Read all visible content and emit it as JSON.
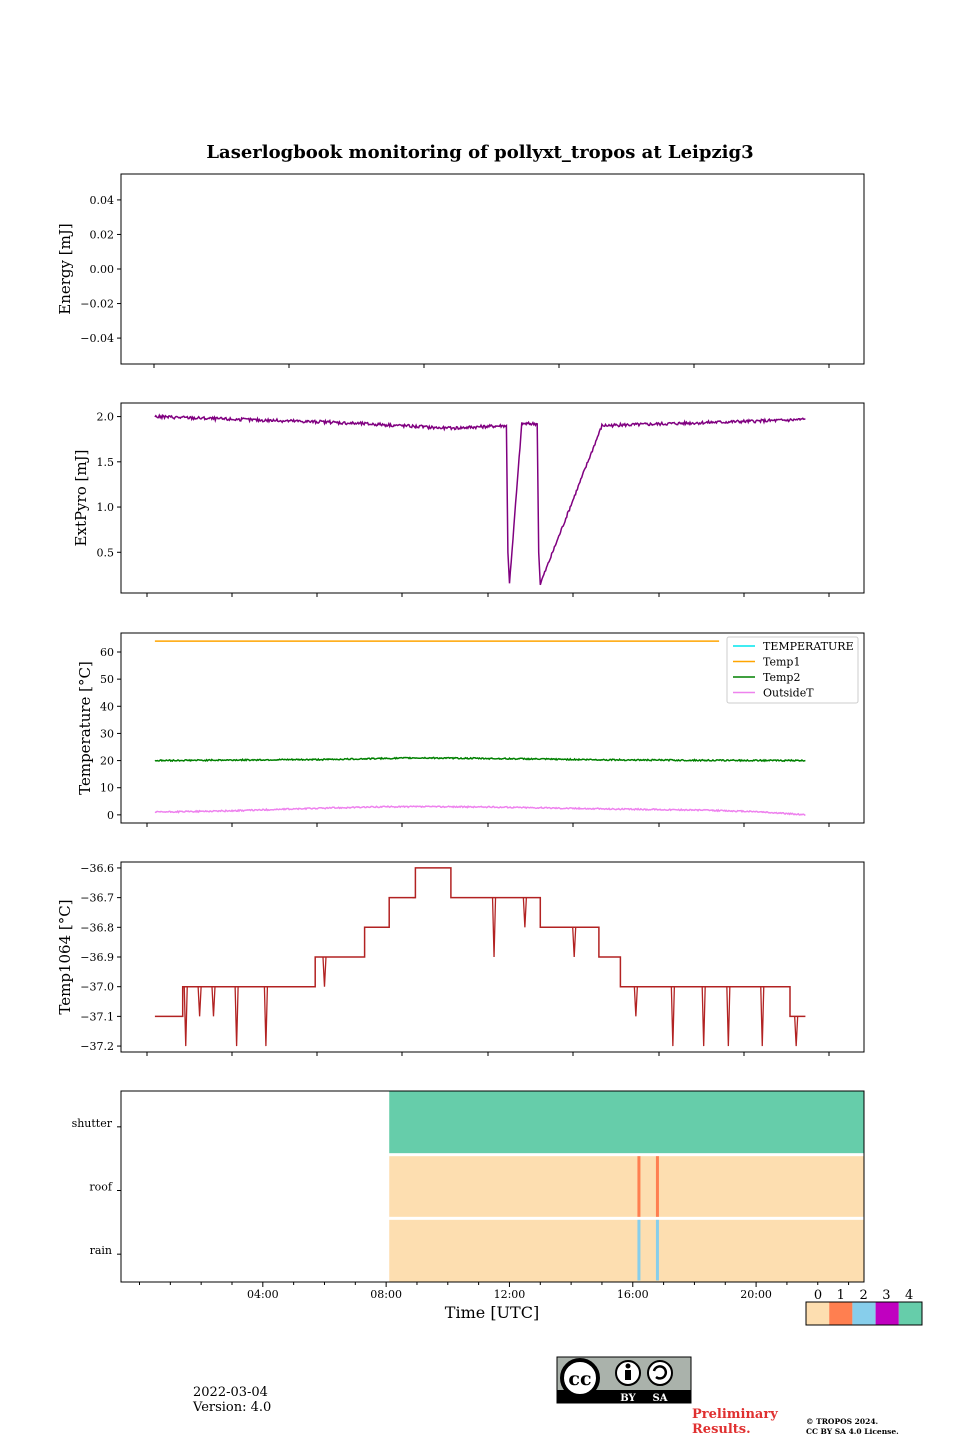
{
  "title": "Laserlogbook monitoring of pollyxt_tropos at Leipzig3",
  "date": "2022-03-04",
  "version": "Version: 4.0",
  "preliminary": [
    "Preliminary",
    "Results."
  ],
  "copyright": [
    "© TROPOS 2024.",
    "CC BY SA 4.0 License."
  ],
  "cc_logo": {
    "cc": "cc",
    "by": "BY",
    "sa": "SA"
  },
  "colors": {
    "energy": "#800080",
    "extpyro": "#800080",
    "temperature": "#00e5ee",
    "temp1": "#ffa500",
    "temp2": "#008000",
    "outside": "#ee82ee",
    "temp1064": "#b22222",
    "status": [
      "#fddeb0",
      "#ff7f50",
      "#87ceeb",
      "#c000c0",
      "#66cdaa"
    ],
    "preliminary": "#e03030"
  },
  "chart_data": [
    {
      "type": "line",
      "id": "energy",
      "ylabel": "Energy [mJ]",
      "ylim": [
        -0.055,
        0.055
      ],
      "yticks": [
        0.04,
        0.02,
        0.0,
        -0.02,
        -0.04
      ],
      "ytick_labels": [
        "0.04",
        "0.02",
        "0.00",
        "−0.02",
        "−0.04"
      ],
      "series": []
    },
    {
      "type": "line",
      "id": "extpyro",
      "ylabel": "ExtPyro [mJ]",
      "ylim": [
        0.05,
        2.15
      ],
      "yticks": [
        2.0,
        1.5,
        1.0,
        0.5
      ],
      "ytick_labels": [
        "2.0",
        "1.5",
        "1.0",
        "0.5"
      ],
      "series": [
        {
          "name": "ExtPyro",
          "x_hours": [
            0.5,
            3,
            6,
            8,
            10,
            11.9,
            11.95,
            12.0,
            12.4,
            12.9,
            12.95,
            13.0,
            15,
            18,
            21,
            21.6
          ],
          "y": [
            2.0,
            1.97,
            1.94,
            1.91,
            1.87,
            1.9,
            0.5,
            0.15,
            1.92,
            1.92,
            0.5,
            0.15,
            1.9,
            1.93,
            1.96,
            1.97
          ]
        }
      ]
    },
    {
      "type": "line",
      "id": "temperature",
      "ylabel": "Temperature [°C]",
      "ylim": [
        -3,
        67
      ],
      "yticks": [
        60,
        50,
        40,
        30,
        20,
        10,
        0
      ],
      "ytick_labels": [
        "60",
        "50",
        "40",
        "30",
        "20",
        "10",
        "0"
      ],
      "legend": [
        "TEMPERATURE",
        "Temp1",
        "Temp2",
        "OutsideT"
      ],
      "series": [
        {
          "name": "Temp1",
          "x_hours": [
            0.5,
            18.8
          ],
          "y": [
            64,
            64
          ]
        },
        {
          "name": "Temp2",
          "x_hours": [
            0.5,
            3,
            6,
            9,
            12,
            15,
            18,
            21.6
          ],
          "y": [
            20,
            20.2,
            20.4,
            21,
            20.7,
            20.3,
            20.1,
            20
          ]
        },
        {
          "name": "OutsideT",
          "x_hours": [
            0.5,
            3,
            6,
            8,
            10,
            12,
            15,
            18,
            20,
            21.6
          ],
          "y": [
            1,
            1.5,
            2.5,
            3,
            3,
            2.8,
            2.2,
            1.8,
            1.2,
            0
          ]
        }
      ]
    },
    {
      "type": "line",
      "id": "temp1064",
      "ylabel": "Temp1064 [°C]",
      "ylim": [
        -37.22,
        -36.58
      ],
      "yticks": [
        -36.6,
        -36.7,
        -36.8,
        -36.9,
        -37.0,
        -37.1,
        -37.2
      ],
      "ytick_labels": [
        "−36.6",
        "−36.7",
        "−36.8",
        "−36.9",
        "−37.0",
        "−37.1",
        "−37.2"
      ],
      "series": [
        {
          "name": "Temp1064",
          "steps": [
            [
              0.5,
              -37.1
            ],
            [
              1.4,
              -37.0
            ],
            [
              5.7,
              -36.9
            ],
            [
              7.3,
              -36.8
            ],
            [
              8.1,
              -36.7
            ],
            [
              8.95,
              -36.6
            ],
            [
              10.1,
              -36.7
            ],
            [
              13.0,
              -36.8
            ],
            [
              14.9,
              -36.9
            ],
            [
              15.6,
              -37.0
            ],
            [
              21.1,
              -37.1
            ],
            [
              21.6,
              -37.1
            ]
          ],
          "spikes": [
            [
              1.5,
              -37.2
            ],
            [
              1.95,
              -37.1
            ],
            [
              3.15,
              -37.2
            ],
            [
              4.1,
              -37.2
            ],
            [
              2.4,
              -37.1
            ],
            [
              6.0,
              -37.0
            ],
            [
              8.9,
              -36.7
            ],
            [
              11.5,
              -36.9
            ],
            [
              12.5,
              -36.8
            ],
            [
              14.1,
              -36.9
            ],
            [
              16.1,
              -37.1
            ],
            [
              17.3,
              -37.2
            ],
            [
              18.3,
              -37.2
            ],
            [
              19.1,
              -37.2
            ],
            [
              20.2,
              -37.2
            ],
            [
              21.3,
              -37.2
            ]
          ]
        }
      ]
    },
    {
      "type": "heatmap",
      "id": "status",
      "rows": [
        "shutter",
        "roof",
        "rain"
      ],
      "xlabel": "Time [UTC]",
      "xlim": [
        -0.6,
        23.5
      ],
      "xtick_labels": [
        "04:00",
        "08:00",
        "12:00",
        "16:00",
        "20:00"
      ],
      "xticks_hours": [
        4,
        8,
        12,
        16,
        20
      ],
      "data_start_hour": 8.1,
      "row_base_values": [
        4,
        0,
        0
      ],
      "events": [
        {
          "row": "roof",
          "hour": 16.2,
          "value": 1
        },
        {
          "row": "roof",
          "hour": 16.8,
          "value": 1
        },
        {
          "row": "rain",
          "hour": 16.2,
          "value": 2
        },
        {
          "row": "rain",
          "hour": 16.8,
          "value": 2
        }
      ],
      "colorbar": {
        "ticks": [
          "0",
          "1",
          "2",
          "3",
          "4"
        ]
      }
    }
  ]
}
